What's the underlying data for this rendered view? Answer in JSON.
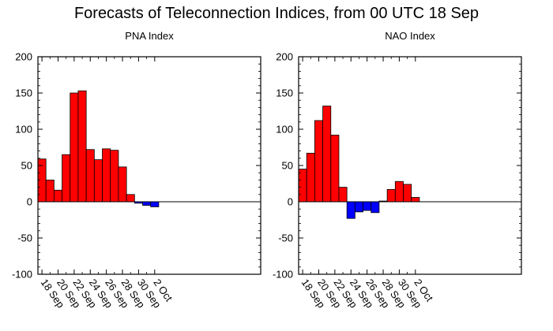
{
  "title": "Forecasts of Teleconnection Indices, from 00 UTC 18 Sep",
  "chart_data": [
    {
      "type": "bar",
      "title": "PNA Index",
      "xlabel": "",
      "ylabel": "",
      "ylim": [
        -100,
        200
      ],
      "yticks": [
        -100,
        -50,
        0,
        50,
        100,
        150,
        200
      ],
      "xtick_labels": [
        "18 Sep",
        "20 Sep",
        "22 Sep",
        "24 Sep",
        "26 Sep",
        "28 Sep",
        "30 Sep",
        "2 Oct"
      ],
      "values": [
        59,
        30,
        16,
        65,
        150,
        153,
        72,
        58,
        73,
        71,
        48,
        10,
        -2,
        -5,
        -7
      ],
      "positive_color": "#ff0000",
      "negative_color": "#0000ff",
      "grid": false
    },
    {
      "type": "bar",
      "title": "NAO Index",
      "xlabel": "",
      "ylabel": "",
      "ylim": [
        -100,
        200
      ],
      "yticks": [
        -100,
        -50,
        0,
        50,
        100,
        150,
        200
      ],
      "xtick_labels": [
        "18 Sep",
        "20 Sep",
        "22 Sep",
        "24 Sep",
        "26 Sep",
        "28 Sep",
        "30 Sep",
        "2 Oct"
      ],
      "values": [
        45,
        67,
        112,
        132,
        92,
        20,
        -23,
        -14,
        -12,
        -15,
        1,
        17,
        28,
        24,
        6
      ],
      "positive_color": "#ff0000",
      "negative_color": "#0000ff",
      "grid": false
    }
  ]
}
